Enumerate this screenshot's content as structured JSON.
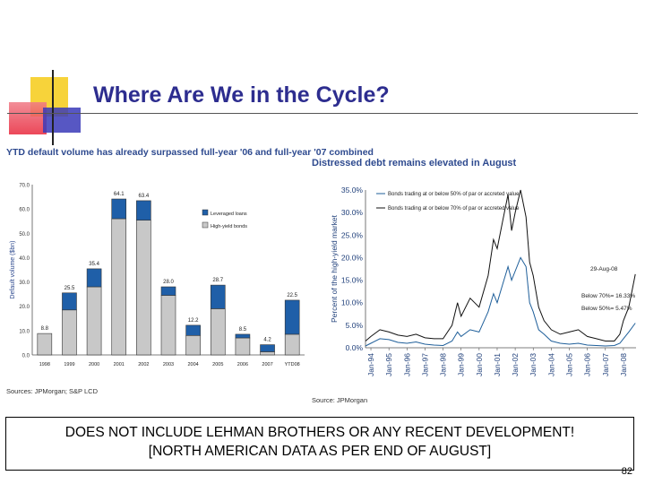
{
  "slide": {
    "title": "Where Are We in the Cycle?",
    "note_line1": "DOES NOT INCLUDE LEHMAN BROTHERS OR ANY RECENT DEVELOPMENT!",
    "note_line2": "[NORTH AMERICAN DATA AS PER END OF AUGUST]",
    "slide_number": "82"
  },
  "colors": {
    "title": "#2d2d8f",
    "deco_yellow": "#f7d33a",
    "deco_red": "#e8283c",
    "deco_blue": "#3a3ab8",
    "loans": "#1f5fa8",
    "bonds": "#c8c8c8",
    "series_50": "#1f5f9a",
    "series_70": "#111111"
  },
  "chart_data": [
    {
      "type": "bar",
      "stacked": true,
      "title": "YTD default volume has already surpassed full-year '06 and full-year '07 combined",
      "ylabel": "Default volume ($bn)",
      "xlabel": "",
      "source": "Sources: JPMorgan; S&P LCD",
      "ylim": [
        0,
        70
      ],
      "yticks": [
        "0.0",
        "10.0",
        "20.0",
        "30.0",
        "40.0",
        "50.0",
        "60.0",
        "70.0"
      ],
      "categories": [
        "1998",
        "1999",
        "2000",
        "2001",
        "2002",
        "2003",
        "2004",
        "2005",
        "2006",
        "2007",
        "YTD08"
      ],
      "series": [
        {
          "name": "High-yield bonds",
          "values": [
            8.8,
            18.5,
            28.0,
            56.0,
            55.4,
            24.5,
            8.0,
            19.0,
            7.0,
            1.3,
            8.5
          ]
        },
        {
          "name": "Leveraged loans",
          "values": [
            0.0,
            7.0,
            7.4,
            8.1,
            8.0,
            3.5,
            4.2,
            9.7,
            1.5,
            2.9,
            14.0
          ]
        }
      ],
      "totals": [
        "8.8",
        "25.5",
        "35.4",
        "64.1",
        "63.4",
        "28.0",
        "12.2",
        "28.7",
        "8.5",
        "4.2",
        "22.5"
      ],
      "legend": [
        "Leveraged loans",
        "High-yield bonds"
      ]
    },
    {
      "type": "line",
      "title": "Distressed debt remains elevated in August",
      "ylabel": "Percent of the high-yield market",
      "xlabel": "",
      "source": "Source: JPMorgan",
      "ylim": [
        0,
        35
      ],
      "yticks": [
        "0.0%",
        "5.0%",
        "10.0%",
        "15.0%",
        "20.0%",
        "25.0%",
        "30.0%",
        "35.0%"
      ],
      "xticks": [
        "Jan-94",
        "Jan-95",
        "Jan-96",
        "Jan-97",
        "Jan-98",
        "Jan-99",
        "Jan-00",
        "Jan-01",
        "Jan-02",
        "Jan-03",
        "Jan-04",
        "Jan-05",
        "Jan-06",
        "Jan-07",
        "Jan-08"
      ],
      "x": [
        1993.7,
        1994.0,
        1994.5,
        1995.0,
        1995.5,
        1996.0,
        1996.5,
        1997.0,
        1997.5,
        1998.0,
        1998.5,
        1998.8,
        1999.0,
        1999.5,
        2000.0,
        2000.5,
        2000.8,
        2001.0,
        2001.3,
        2001.6,
        2001.8,
        2002.0,
        2002.3,
        2002.6,
        2002.8,
        2003.0,
        2003.3,
        2003.6,
        2004.0,
        2004.5,
        2005.0,
        2005.5,
        2006.0,
        2006.5,
        2007.0,
        2007.5,
        2007.8,
        2008.0,
        2008.3,
        2008.66
      ],
      "series": [
        {
          "name": "Bonds trading at or below 50% of par or accreted value",
          "values": [
            0.4,
            1.0,
            2.0,
            1.8,
            1.2,
            1.0,
            1.3,
            0.8,
            0.6,
            0.5,
            1.5,
            3.5,
            2.5,
            4.0,
            3.5,
            8.0,
            12.0,
            10.0,
            14.0,
            18.0,
            15.0,
            17.0,
            20.0,
            18.0,
            10.0,
            8.0,
            4.0,
            3.0,
            1.5,
            1.0,
            0.8,
            1.0,
            0.6,
            0.5,
            0.4,
            0.5,
            1.0,
            2.0,
            3.5,
            5.47
          ]
        },
        {
          "name": "Bonds trading at or below 70% of par or accreted value",
          "values": [
            1.5,
            2.5,
            4.0,
            3.5,
            2.8,
            2.5,
            3.0,
            2.2,
            2.0,
            2.0,
            5.0,
            10.0,
            7.0,
            11.0,
            9.0,
            16.0,
            24.0,
            22.0,
            28.0,
            34.0,
            26.0,
            30.0,
            35.0,
            29.0,
            19.0,
            16.0,
            9.0,
            6.0,
            4.0,
            3.0,
            3.5,
            4.0,
            2.5,
            2.0,
            1.5,
            1.5,
            3.0,
            6.0,
            9.0,
            16.33
          ]
        }
      ],
      "annotation": [
        "29-Aug-08",
        "Below 70%= 16.33%",
        "Below 50%= 5.47%"
      ]
    }
  ]
}
